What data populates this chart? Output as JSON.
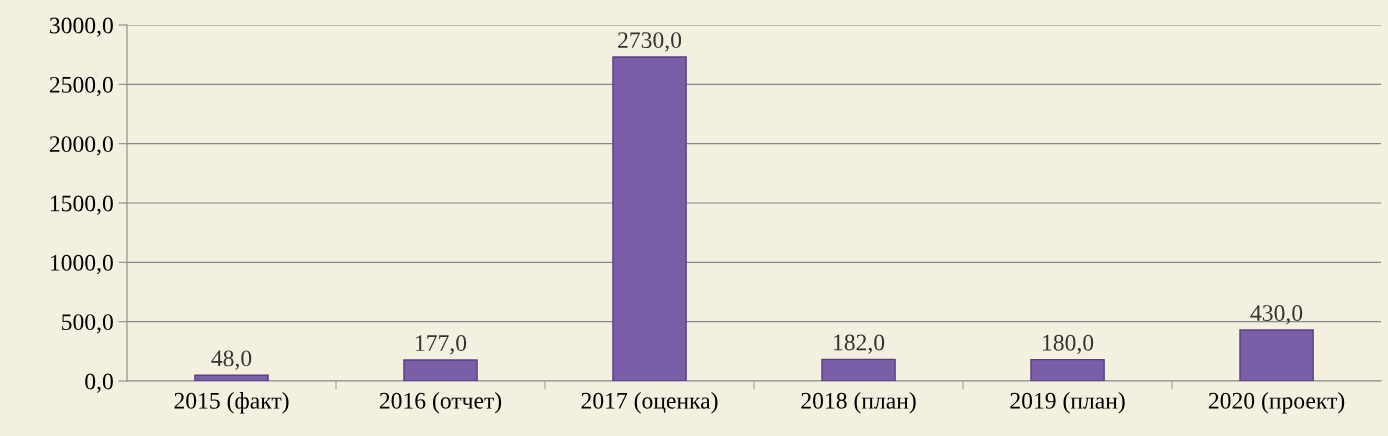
{
  "chart_data": {
    "type": "bar",
    "categories": [
      "2015 (факт)",
      "2016 (отчет)",
      "2017 (оценка)",
      "2018 (план)",
      "2019 (план)",
      "2020 (проект)"
    ],
    "values": [
      48,
      177,
      2730,
      182,
      180,
      430
    ],
    "value_labels": [
      "48,0",
      "177,0",
      "2730,0",
      "182,0",
      "180,0",
      "430,0"
    ],
    "color": "#7b5ea8",
    "ylim": [
      0,
      3000
    ],
    "yticks": [
      {
        "value": 0,
        "label": "0,0"
      },
      {
        "value": 500,
        "label": "500,0"
      },
      {
        "value": 1000,
        "label": "1000,0"
      },
      {
        "value": 1500,
        "label": "1500,0"
      },
      {
        "value": 2000,
        "label": "2000,0"
      },
      {
        "value": 2500,
        "label": "2500,0"
      },
      {
        "value": 3000,
        "label": "3000,0"
      }
    ],
    "grid": "y",
    "legend": false
  }
}
